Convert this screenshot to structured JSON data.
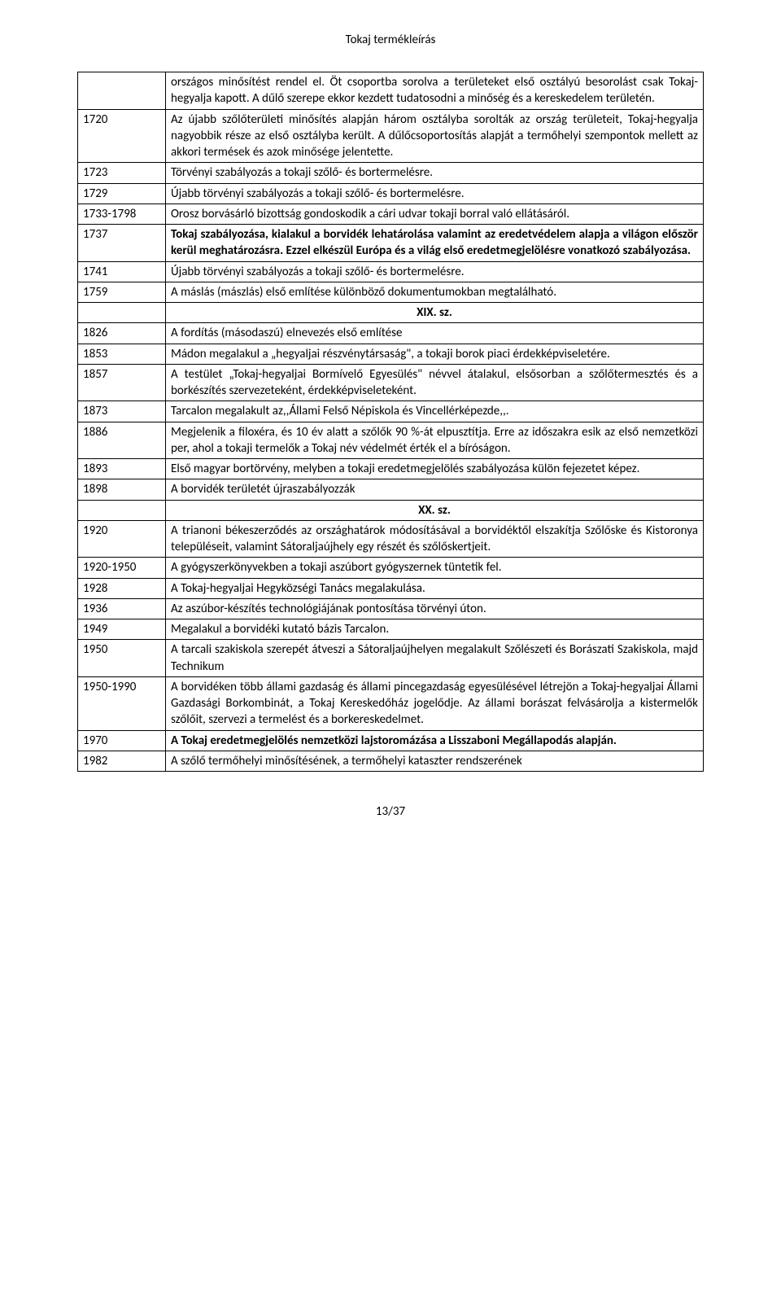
{
  "header": "Tokaj termékleírás",
  "footer": "13/37",
  "rows": [
    {
      "year": "",
      "desc": "országos minősítést rendel el. Öt csoportba sorolva a területeket első osztályú besorolást csak Tokaj-hegyalja kapott. A dűlő szerepe ekkor kezdett tudatosodni a minőség és a kereskedelem területén."
    },
    {
      "year": "1720",
      "desc": "Az újabb szőlőterületi minősítés alapján három osztályba sorolták az ország területeit, Tokaj-hegyalja nagyobbik része az első osztályba került. A dűlőcsoportosítás alapját a termőhelyi szempontok mellett az akkori termések és azok minősége jelentette."
    },
    {
      "year": "1723",
      "desc": "Törvényi szabályozás a tokaji szőlő- és bortermelésre."
    },
    {
      "year": "1729",
      "desc": "Újabb törvényi szabályozás a tokaji szőlő- és bortermelésre."
    },
    {
      "year": "1733-1798",
      "desc": "Orosz borvásárló bizottság gondoskodik a cári udvar tokaji borral való ellátásáról."
    },
    {
      "year": "1737",
      "desc": "Tokaj szabályozása, kialakul a borvidék lehatárolása valamint az eredetvédelem alapja a világon először kerül meghatározásra. Ezzel elkészül Európa és a világ első eredetmegjelölésre vonatkozó szabályozása.",
      "bold": true
    },
    {
      "year": "1741",
      "desc": "Újabb törvényi szabályozás a tokaji szőlő- és bortermelésre."
    },
    {
      "year": "1759",
      "desc": "A máslás (mászlás) első említése különböző dokumentumokban megtalálható."
    },
    {
      "century": "XIX. sz."
    },
    {
      "year": "1826",
      "desc": "A fordítás (másodaszú) elnevezés első említése"
    },
    {
      "year": "1853",
      "desc": "Mádon megalakul a „hegyaljai részvénytársaság\", a tokaji borok piaci érdekképviseletére."
    },
    {
      "year": "1857",
      "desc": "A testület „Tokaj-hegyaljai Bormívelő Egyesülés\" névvel átalakul, elsősorban a szőlőtermesztés és a borkészítés szervezeteként, érdekképviseleteként."
    },
    {
      "year": "1873",
      "desc": "Tarcalon megalakult az,,Állami Felső Népiskola és Vincellérképezde,,."
    },
    {
      "year": "1886",
      "desc": "Megjelenik a filoxéra, és 10 év alatt a szőlők 90 %-át elpusztítja. Erre az időszakra esik az első nemzetközi per, ahol a tokaji termelők a Tokaj név védelmét érték el a bíróságon."
    },
    {
      "year": "1893",
      "desc": "Első magyar bortörvény, melyben a tokaji eredetmegjelölés szabályozása külön fejezetet képez."
    },
    {
      "year": "1898",
      "desc": "A borvidék területét újraszabályozzák"
    },
    {
      "century": "XX. sz."
    },
    {
      "year": "1920",
      "desc": "A trianoni békeszerződés az országhatárok módosításával a borvidéktől elszakítja Szőlőske és Kistoronya településeit, valamint Sátoraljaújhely egy részét és szőlőskertjeit."
    },
    {
      "year": "1920-1950",
      "desc": "A gyógyszerkönyvekben a tokaji aszúbort gyógyszernek tüntetik fel."
    },
    {
      "year": "1928",
      "desc": "A Tokaj-hegyaljai Hegyközségi Tanács megalakulása."
    },
    {
      "year": "1936",
      "desc": "Az aszúbor-készítés technológiájának pontosítása törvényi úton."
    },
    {
      "year": "1949",
      "desc": "Megalakul a borvidéki kutató bázis Tarcalon."
    },
    {
      "year": "1950",
      "desc": "A tarcali szakiskola szerepét átveszi a Sátoraljaújhelyen megalakult Szőlészeti és Borászati Szakiskola, majd Technikum"
    },
    {
      "year": "1950-1990",
      "desc": "A borvidéken több állami gazdaság és állami pincegazdaság egyesülésével létrejön a Tokaj-hegyaljai Állami Gazdasági Borkombinát, a Tokaj Kereskedőház jogelődje. Az állami borászat felvásárolja a kistermelők szőlőit, szervezi a termelést és a borkereskedelmet."
    },
    {
      "year": "1970",
      "desc": "A Tokaj eredetmegjelölés nemzetközi lajstoromázása a Lisszaboni Megállapodás alapján.",
      "bold": true
    },
    {
      "year": "1982",
      "desc": "A szőlő termőhelyi minősítésének, a termőhelyi kataszter rendszerének"
    }
  ]
}
